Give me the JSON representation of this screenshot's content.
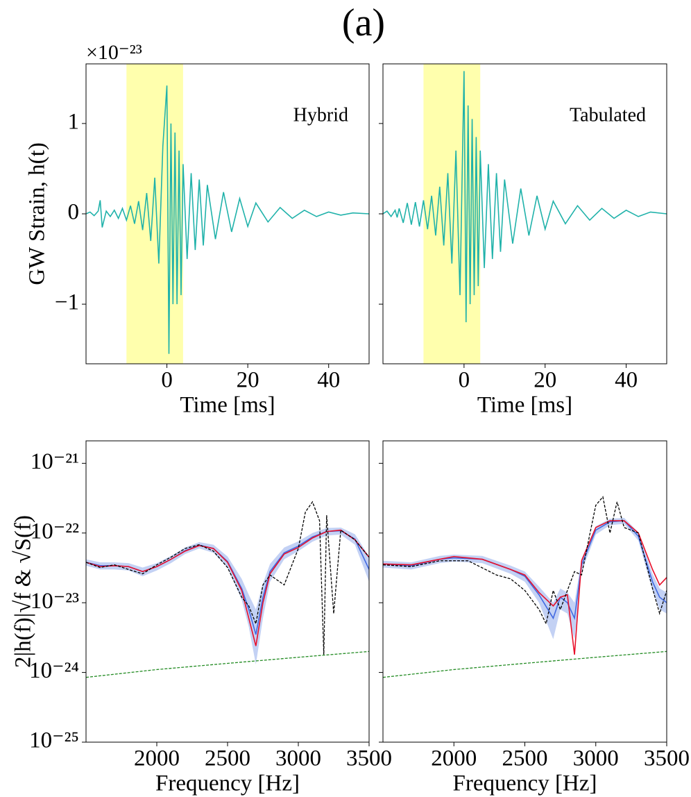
{
  "title": "(a)",
  "chart_data": [
    {
      "type": "line",
      "annotation": "Hybrid",
      "offset_text": "×10⁻²³",
      "ylabel": "GW Strain, h(t)",
      "xlabel": "Time [ms]",
      "xlim": [
        -20,
        50
      ],
      "ylim": [
        -1.66,
        1.66
      ],
      "xticks": [
        0,
        20,
        40
      ],
      "yticks": [
        {
          "value": -1,
          "label": "−1"
        },
        0,
        1
      ],
      "ytick_labels": true,
      "span": {
        "x": [
          -10,
          4
        ],
        "color": "#ffff99"
      },
      "x": [
        -20,
        -19,
        -18,
        -17,
        -16.5,
        -16,
        -15,
        -14,
        -13,
        -12,
        -11,
        -10,
        -9,
        -8,
        -7,
        -6,
        -5,
        -4,
        -3,
        -2,
        -1,
        0,
        0.5,
        1,
        1.5,
        2,
        2.5,
        3,
        3.5,
        4,
        5,
        6,
        7,
        8,
        9,
        10,
        12,
        14,
        16,
        18,
        20,
        22,
        25,
        28,
        31,
        34,
        37,
        40,
        43,
        46,
        50
      ],
      "series": [
        {
          "color": "#20b2aa",
          "values": [
            0,
            0.02,
            -0.02,
            0.03,
            0.15,
            -0.15,
            0.03,
            -0.03,
            0.04,
            -0.05,
            0.06,
            -0.07,
            0.09,
            -0.11,
            0.14,
            -0.18,
            0.23,
            -0.3,
            0.4,
            -0.55,
            0.75,
            1.42,
            -1.55,
            1.0,
            -1.0,
            0.9,
            -1.0,
            0.7,
            -0.9,
            0.55,
            -0.5,
            0.45,
            -0.4,
            0.38,
            -0.35,
            0.32,
            -0.28,
            0.24,
            -0.2,
            0.17,
            -0.14,
            0.12,
            -0.09,
            0.07,
            -0.05,
            0.04,
            -0.03,
            0.02,
            -0.015,
            0.01,
            0
          ]
        }
      ]
    },
    {
      "type": "line",
      "annotation": "Tabulated",
      "xlabel": "Time [ms]",
      "xlim": [
        -20,
        50
      ],
      "ylim": [
        -1.66,
        1.66
      ],
      "xticks": [
        0,
        20,
        40
      ],
      "yticks": [
        -1,
        0,
        1
      ],
      "ytick_labels": false,
      "span": {
        "x": [
          -10,
          4
        ],
        "color": "#ffff99"
      },
      "x": [
        -20,
        -19,
        -18,
        -17,
        -16.5,
        -16,
        -15,
        -14,
        -13,
        -12,
        -11,
        -10,
        -9,
        -8,
        -7,
        -6,
        -5,
        -4,
        -3,
        -2,
        -1,
        0,
        0.5,
        1,
        1.5,
        2,
        2.5,
        3,
        3.5,
        4,
        5,
        6,
        7,
        8,
        9,
        10,
        12,
        14,
        16,
        18,
        20,
        22,
        25,
        28,
        31,
        34,
        37,
        40,
        43,
        46,
        50
      ],
      "series": [
        {
          "color": "#20b2aa",
          "values": [
            0,
            0.03,
            -0.03,
            0.04,
            -0.04,
            0.06,
            -0.1,
            0.12,
            -0.12,
            0.13,
            -0.14,
            0.15,
            -0.17,
            0.2,
            -0.24,
            0.3,
            -0.35,
            0.45,
            -0.55,
            0.7,
            -0.9,
            1.58,
            -1.2,
            1.2,
            -1.0,
            1.05,
            -0.9,
            0.85,
            -0.8,
            0.7,
            -0.6,
            0.55,
            -0.5,
            0.45,
            -0.42,
            0.38,
            -0.33,
            0.28,
            -0.24,
            0.2,
            -0.17,
            0.14,
            -0.11,
            0.09,
            -0.07,
            0.06,
            -0.05,
            0.04,
            -0.03,
            0.02,
            0
          ]
        }
      ]
    },
    {
      "type": "line",
      "yscale": "log",
      "ylabel": "2|h(f)|√f & √S(f)",
      "xlabel": "Frequency [Hz]",
      "xlim": [
        1500,
        3500
      ],
      "ylim": [
        1e-25,
        2.1e-21
      ],
      "xticks": [
        2000,
        2500,
        3000,
        3500
      ],
      "yticks": [
        {
          "value": 1e-25,
          "label": "10⁻²⁵"
        },
        {
          "value": 1e-24,
          "label": "10⁻²⁴"
        },
        {
          "value": 1e-23,
          "label": "10⁻²³"
        },
        {
          "value": 1e-22,
          "label": "10⁻²²"
        },
        {
          "value": 1e-21,
          "label": "10⁻²¹"
        }
      ],
      "ytick_labels": true,
      "x": [
        1500,
        1600,
        1700,
        1800,
        1900,
        2000,
        2100,
        2200,
        2300,
        2400,
        2500,
        2600,
        2650,
        2700,
        2750,
        2800,
        2900,
        3000,
        3100,
        3200,
        3300,
        3400,
        3500
      ],
      "series": [
        {
          "color": "#4169e1",
          "band_color": "#a9bdf0",
          "values": [
            3.8e-23,
            3.4e-23,
            3.4e-23,
            3.3e-23,
            2.8e-23,
            3.3e-23,
            4.2e-23,
            5.6e-23,
            6.7e-23,
            6e-23,
            3.9e-23,
            1.6e-23,
            8e-24,
            3.5e-24,
            1.2e-23,
            2.8e-23,
            5.2e-23,
            6.5e-23,
            8.8e-23,
            1.05e-22,
            1.08e-22,
            8.2e-23,
            3e-23
          ],
          "lower": [
            3.4e-23,
            3e-23,
            3e-23,
            2.9e-23,
            2.4e-23,
            2.9e-23,
            3.7e-23,
            5e-23,
            6e-23,
            5.2e-23,
            3.2e-23,
            1.1e-23,
            4.5e-24,
            1.3e-24,
            6e-24,
            2e-23,
            4.2e-23,
            5.5e-23,
            7.5e-23,
            9.2e-23,
            9.5e-23,
            6.8e-23,
            2e-23
          ],
          "upper": [
            4.2e-23,
            3.8e-23,
            3.8e-23,
            3.7e-23,
            3.2e-23,
            3.7e-23,
            4.7e-23,
            6.2e-23,
            7.4e-23,
            6.8e-23,
            4.6e-23,
            2.2e-23,
            1.3e-23,
            8e-24,
            1.9e-23,
            3.6e-23,
            6.2e-23,
            7.6e-23,
            1e-22,
            1.18e-22,
            1.2e-22,
            9.6e-23,
            4.6e-23
          ]
        },
        {
          "color": "#e8102a",
          "values": [
            3.8e-23,
            3.3e-23,
            3.4e-23,
            3.3e-23,
            2.8e-23,
            3.3e-23,
            4.2e-23,
            5.5e-23,
            6.6e-23,
            6e-23,
            3.8e-23,
            1.5e-23,
            6e-24,
            2.4e-24,
            1e-23,
            2.6e-23,
            5e-23,
            6.2e-23,
            8.5e-23,
            1.05e-22,
            1.1e-22,
            8e-23,
            4.5e-23
          ]
        },
        {
          "color": "#000000",
          "dashed": true,
          "x": [
            1500,
            1600,
            1700,
            1800,
            1900,
            2000,
            2100,
            2200,
            2300,
            2400,
            2500,
            2600,
            2650,
            2700,
            2750,
            2800,
            2900,
            3000,
            3050,
            3100,
            3150,
            3180,
            3200,
            3250,
            3300,
            3400,
            3500
          ],
          "values": [
            3.8e-23,
            3.2e-23,
            3.5e-23,
            3e-23,
            2.6e-23,
            3.5e-23,
            4.5e-23,
            6e-23,
            6.8e-23,
            5.5e-23,
            3.2e-23,
            1.2e-23,
            9e-24,
            5e-24,
            1.8e-23,
            2.5e-23,
            1.8e-23,
            6e-23,
            2e-22,
            2.8e-22,
            1.5e-22,
            1.8e-24,
            1.8e-22,
            7e-24,
            1.1e-22,
            8e-23,
            4.5e-23
          ]
        },
        {
          "color": "#228b22",
          "dashed": true,
          "x": [
            1500,
            2000,
            2500,
            3000,
            3500
          ],
          "values": [
            8.5e-25,
            1.1e-24,
            1.35e-24,
            1.65e-24,
            2e-24
          ]
        }
      ]
    },
    {
      "type": "line",
      "yscale": "log",
      "xlabel": "Frequency [Hz]",
      "xlim": [
        1500,
        3500
      ],
      "ylim": [
        1e-25,
        2.1e-21
      ],
      "xticks": [
        2000,
        2500,
        3000,
        3500
      ],
      "yticks": [
        1e-25,
        1e-24,
        1e-23,
        1e-22,
        1e-21
      ],
      "ytick_labels": false,
      "x": [
        1500,
        1700,
        1900,
        2000,
        2200,
        2400,
        2500,
        2600,
        2700,
        2750,
        2800,
        2850,
        2900,
        3000,
        3100,
        3200,
        3300,
        3400,
        3450,
        3500
      ],
      "series": [
        {
          "color": "#4169e1",
          "band_color": "#a9bdf0",
          "values": [
            3.6e-23,
            3.4e-23,
            4.2e-23,
            4.4e-23,
            4.2e-23,
            3e-23,
            2.4e-23,
            1.3e-23,
            6e-24,
            1.2e-23,
            1e-23,
            6e-24,
            3.5e-23,
            1.1e-22,
            1.45e-22,
            1.5e-22,
            9e-23,
            2e-23,
            1.2e-23,
            1e-23
          ],
          "lower": [
            3.2e-23,
            3e-23,
            3.7e-23,
            3.9e-23,
            3.7e-23,
            2.6e-23,
            2e-23,
            1e-23,
            3e-24,
            8e-24,
            7e-24,
            3e-24,
            2.8e-23,
            9.5e-23,
            1.3e-22,
            1.35e-22,
            7.8e-23,
            1.5e-23,
            8e-24,
            7e-24
          ],
          "upper": [
            4e-23,
            3.8e-23,
            4.7e-23,
            4.9e-23,
            4.7e-23,
            3.4e-23,
            2.8e-23,
            1.7e-23,
            1e-23,
            1.6e-23,
            1.4e-23,
            1e-23,
            4.3e-23,
            1.25e-22,
            1.6e-22,
            1.65e-22,
            1.03e-22,
            2.6e-23,
            1.6e-23,
            1.4e-23
          ]
        },
        {
          "color": "#e8102a",
          "values": [
            3.6e-23,
            3.5e-23,
            4.2e-23,
            4.6e-23,
            4.2e-23,
            3e-23,
            2.5e-23,
            1.4e-23,
            9e-24,
            1.2e-23,
            1.3e-23,
            1.8e-24,
            4e-23,
            1.2e-22,
            1.5e-22,
            1.5e-22,
            1e-22,
            3e-23,
            1.8e-23,
            2.3e-23
          ]
        },
        {
          "color": "#000000",
          "dashed": true,
          "x": [
            1500,
            1700,
            1900,
            2100,
            2300,
            2400,
            2500,
            2600,
            2650,
            2700,
            2750,
            2800,
            2850,
            2900,
            2950,
            3000,
            3050,
            3100,
            3150,
            3200,
            3300,
            3400,
            3450,
            3500
          ],
          "values": [
            3.5e-23,
            3.3e-23,
            4e-23,
            4e-23,
            2.5e-23,
            2.2e-23,
            1.5e-23,
            8e-24,
            5e-24,
            1.5e-23,
            8e-24,
            1.5e-23,
            2.8e-23,
            2.5e-23,
            8e-23,
            2.5e-22,
            3.3e-22,
            1e-22,
            2.8e-22,
            1.2e-22,
            1e-22,
            1.6e-23,
            7e-24,
            1.5e-23
          ]
        },
        {
          "color": "#228b22",
          "dashed": true,
          "x": [
            1500,
            2000,
            2500,
            3000,
            3500
          ],
          "values": [
            8.5e-25,
            1.1e-24,
            1.35e-24,
            1.65e-24,
            2e-24
          ]
        }
      ]
    }
  ]
}
